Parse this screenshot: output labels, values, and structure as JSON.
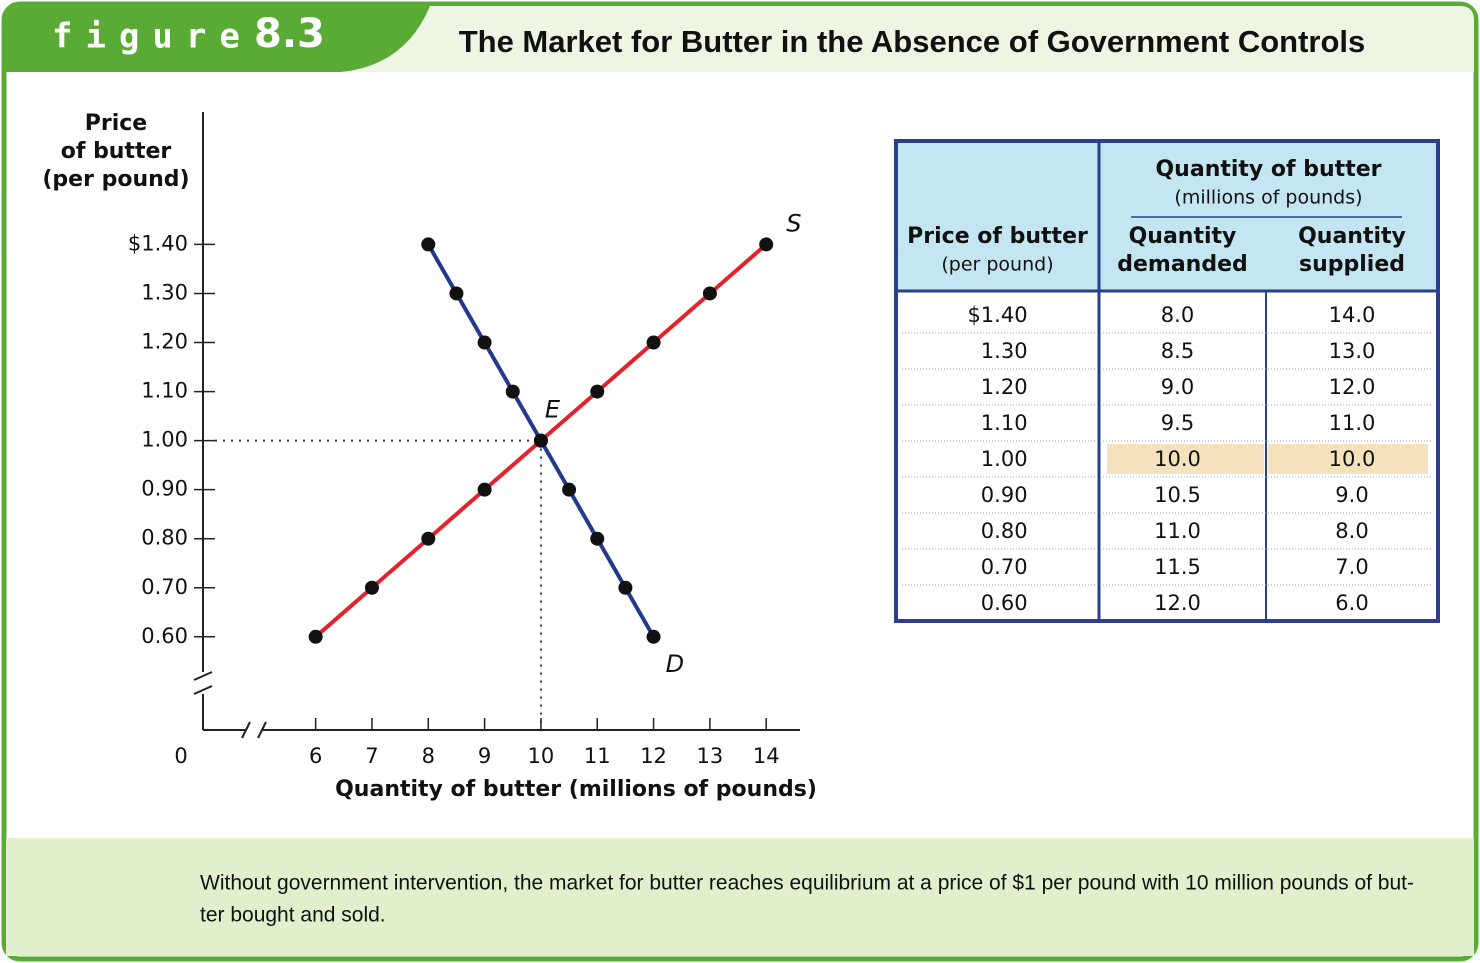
{
  "header": {
    "figure_label": "figure",
    "figure_number": "8.3",
    "title": "The Market for Butter in the Absence of Government Controls"
  },
  "chart_data": {
    "type": "line",
    "y_label": [
      "Price",
      "of butter",
      "(per pound)"
    ],
    "x_label": "Quantity of butter (millions of pounds)",
    "origin_label": "0",
    "xlim": [
      4,
      14.6
    ],
    "ylim": [
      0.41,
      1.67
    ],
    "xticks": [
      6,
      7,
      8,
      9,
      10,
      11,
      12,
      13,
      14
    ],
    "yticks": [
      {
        "value": 1.4,
        "label": "$1.40"
      },
      {
        "value": 1.3,
        "label": "1.30"
      },
      {
        "value": 1.2,
        "label": "1.20"
      },
      {
        "value": 1.1,
        "label": "1.10"
      },
      {
        "value": 1,
        "label": "1.00"
      },
      {
        "value": 0.9,
        "label": "0.90"
      },
      {
        "value": 0.8,
        "label": "0.80"
      },
      {
        "value": 0.7,
        "label": "0.70"
      },
      {
        "value": 0.6,
        "label": "0.60"
      }
    ],
    "series": [
      {
        "name": "D",
        "color": "#22398c",
        "x": [
          8,
          8.5,
          9,
          9.5,
          10,
          10.5,
          11,
          11.5,
          12
        ],
        "values": [
          1.4,
          1.3,
          1.2,
          1.1,
          1,
          0.9,
          0.8,
          0.7,
          0.6
        ]
      },
      {
        "name": "S",
        "color": "#e3222b",
        "x": [
          14,
          13,
          12,
          11,
          10,
          9,
          8,
          7,
          6
        ],
        "values": [
          1.4,
          1.3,
          1.2,
          1.1,
          1,
          0.9,
          0.8,
          0.7,
          0.6
        ]
      }
    ],
    "annotation": {
      "text": "E",
      "x": 10,
      "y": 1
    }
  },
  "table": {
    "price_header": [
      "Price of butter",
      "(per pound)"
    ],
    "group_header": [
      "Quantity of butter",
      "(millions of pounds)"
    ],
    "column_headers": [
      [
        "Quantity",
        "demanded"
      ],
      [
        "Quantity",
        "supplied"
      ]
    ],
    "rows": [
      [
        "$1.40",
        "8.0",
        "14.0"
      ],
      [
        "1.30",
        "8.5",
        "13.0"
      ],
      [
        "1.20",
        "9.0",
        "12.0"
      ],
      [
        "1.10",
        "9.5",
        "11.0"
      ],
      [
        "1.00",
        "10.0",
        "10.0"
      ],
      [
        "0.90",
        "10.5",
        "9.0"
      ],
      [
        "0.80",
        "11.0",
        "8.0"
      ],
      [
        "0.70",
        "11.5",
        "7.0"
      ],
      [
        "0.60",
        "12.0",
        "6.0"
      ]
    ],
    "highlight_row": 4
  },
  "caption": [
    "Without government intervention, the market for butter reaches equilibrium at a price of $1 per pound with 10 million pounds of but-",
    "ter bought and sold."
  ]
}
